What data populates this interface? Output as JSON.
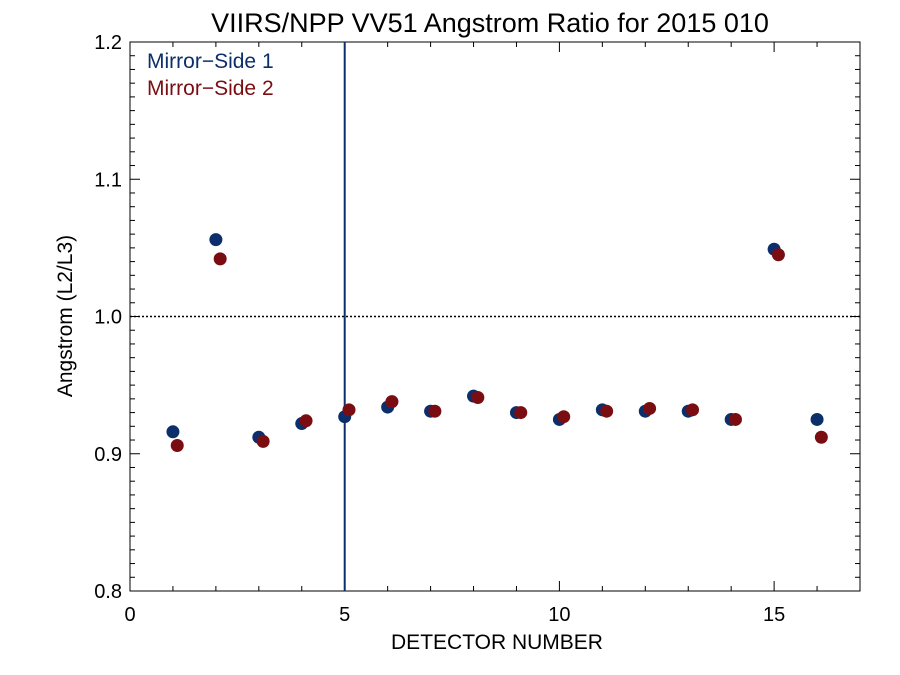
{
  "chart_data": {
    "type": "scatter",
    "title": "VIIRS/NPP VV51 Angstrom Ratio for 2015 010",
    "xlabel": "DETECTOR NUMBER",
    "ylabel": "Angstrom (L2/L3)",
    "xlim": [
      0,
      17
    ],
    "ylim": [
      0.8,
      1.2
    ],
    "xticks": [
      0,
      5,
      10,
      15
    ],
    "xtick_labels": [
      "0",
      "5",
      "10",
      "15"
    ],
    "yticks": [
      0.8,
      0.9,
      1.0,
      1.1,
      1.2
    ],
    "ytick_labels": [
      "0.8",
      "0.9",
      "1.0",
      "1.1",
      "1.2"
    ],
    "reference_line_y": 1.0,
    "reference_line_x": 5,
    "legend_position": "top-left",
    "series": [
      {
        "name": "Mirror−Side 1",
        "color": "#0c2f6b",
        "x": [
          1,
          2,
          3,
          4,
          5,
          6,
          7,
          8,
          9,
          10,
          11,
          12,
          13,
          14,
          15,
          16
        ],
        "y": [
          0.916,
          1.056,
          0.912,
          0.922,
          0.927,
          0.934,
          0.931,
          0.942,
          0.93,
          0.925,
          0.932,
          0.931,
          0.931,
          0.925,
          1.049,
          0.925
        ]
      },
      {
        "name": "Mirror−Side 2",
        "color": "#7a0d12",
        "x": [
          1.1,
          2.1,
          3.1,
          4.1,
          5.1,
          6.1,
          7.1,
          8.1,
          9.1,
          10.1,
          11.1,
          12.1,
          13.1,
          14.1,
          15.1,
          16.1
        ],
        "y": [
          0.906,
          1.042,
          0.909,
          0.924,
          0.932,
          0.938,
          0.931,
          0.941,
          0.93,
          0.927,
          0.931,
          0.933,
          0.932,
          0.925,
          1.045,
          0.912
        ]
      }
    ]
  }
}
